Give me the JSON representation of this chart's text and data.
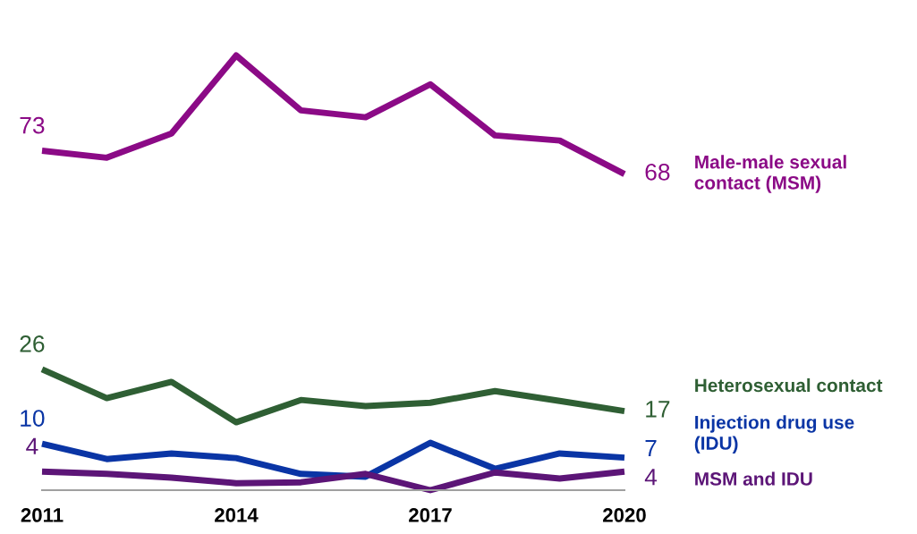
{
  "chart_data": {
    "type": "line",
    "x": [
      2011,
      2012,
      2013,
      2014,
      2015,
      2016,
      2017,
      2018,
      2019,
      2020
    ],
    "xlim": [
      2011,
      2020
    ],
    "xticks": [
      2011,
      2014,
      2017,
      2020
    ],
    "grid": false,
    "legend": false,
    "marker": "none",
    "line_style": "solid",
    "series": [
      {
        "name": "Male-male sexual\ncontact (MSM)",
        "color": "#8b0a86",
        "values": [
          73,
          71.5,
          76.7,
          93.5,
          81.7,
          80.2,
          87.3,
          76.3,
          75.2,
          68
        ],
        "value_labels": [
          "73",
          null,
          null,
          null,
          null,
          null,
          null,
          null,
          null,
          "68"
        ]
      },
      {
        "name": "Heterosexual contact",
        "color": "#2f5f34",
        "values": [
          26,
          19.8,
          23.3,
          14.6,
          19.4,
          18.1,
          18.8,
          21.3,
          19.2,
          17
        ],
        "value_labels": [
          "26",
          null,
          null,
          null,
          null,
          null,
          null,
          null,
          null,
          "17"
        ]
      },
      {
        "name": "Injection drug use\n(IDU)",
        "color": "#0a35a5",
        "values": [
          10,
          6.7,
          7.9,
          6.9,
          3.5,
          2.9,
          10.2,
          4.6,
          7.9,
          7
        ],
        "value_labels": [
          "10",
          null,
          null,
          null,
          null,
          null,
          null,
          null,
          null,
          "7"
        ]
      },
      {
        "name": "MSM and IDU",
        "color": "#5c1577",
        "values": [
          4,
          3.5,
          2.7,
          1.5,
          1.7,
          3.5,
          0,
          3.8,
          2.5,
          4
        ],
        "value_labels": [
          "4",
          null,
          null,
          null,
          null,
          null,
          null,
          null,
          null,
          "4"
        ]
      }
    ]
  }
}
